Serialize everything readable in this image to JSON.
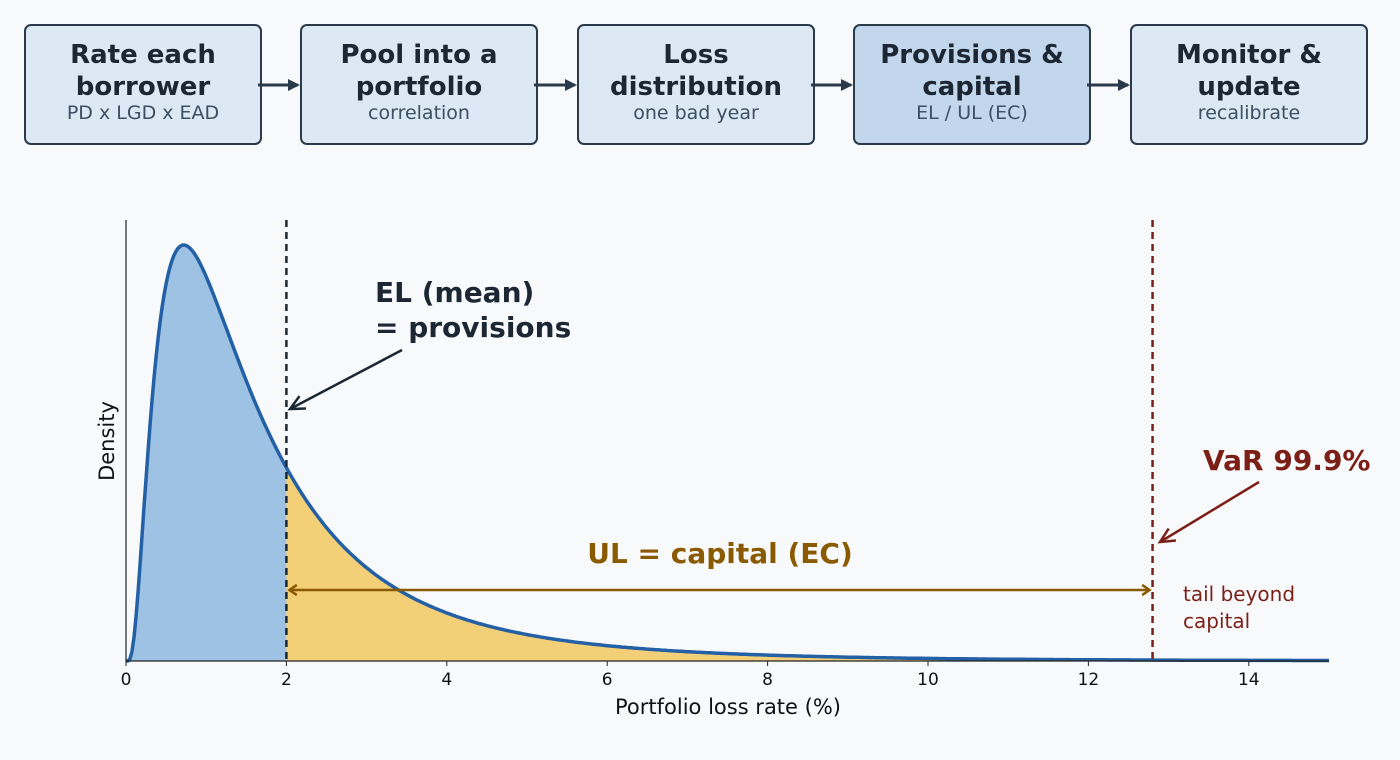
{
  "flow": {
    "steps": [
      {
        "title": "Rate each borrower",
        "subtitle": "PD x LGD x EAD"
      },
      {
        "title": "Pool into a portfolio",
        "subtitle": "correlation"
      },
      {
        "title": "Loss distribution",
        "subtitle": "one bad year"
      },
      {
        "title": "Provisions & capital",
        "subtitle": "EL / UL (EC)"
      },
      {
        "title": "Monitor & update",
        "subtitle": "recalibrate"
      }
    ],
    "highlight_index": 3
  },
  "chart_data": {
    "type": "area",
    "xlabel": "Portfolio loss rate (%)",
    "ylabel": "Density",
    "xlim": [
      0,
      15
    ],
    "xticks": [
      0,
      2,
      4,
      6,
      8,
      10,
      12,
      14
    ],
    "grid": false,
    "distribution": {
      "shape": "right-skewed",
      "mode": 0.72,
      "mean": 2.0,
      "var_999": 12.8
    },
    "markers": {
      "el": {
        "x": 2.0,
        "label_line1": "EL (mean)",
        "label_line2": "= provisions",
        "color": "#1c2733"
      },
      "var": {
        "x": 12.8,
        "label": "VaR 99.9%",
        "color": "#7b1f17"
      }
    },
    "ul_label": "UL = capital (EC)",
    "tail_label_line1": "tail beyond",
    "tail_label_line2": "capital",
    "colors": {
      "curve": "#2360a5",
      "el_fill": "#9dc2e3",
      "ul_fill": "#f3cf78",
      "ul_text": "#8a5a00",
      "var": "#7b1f17"
    }
  }
}
